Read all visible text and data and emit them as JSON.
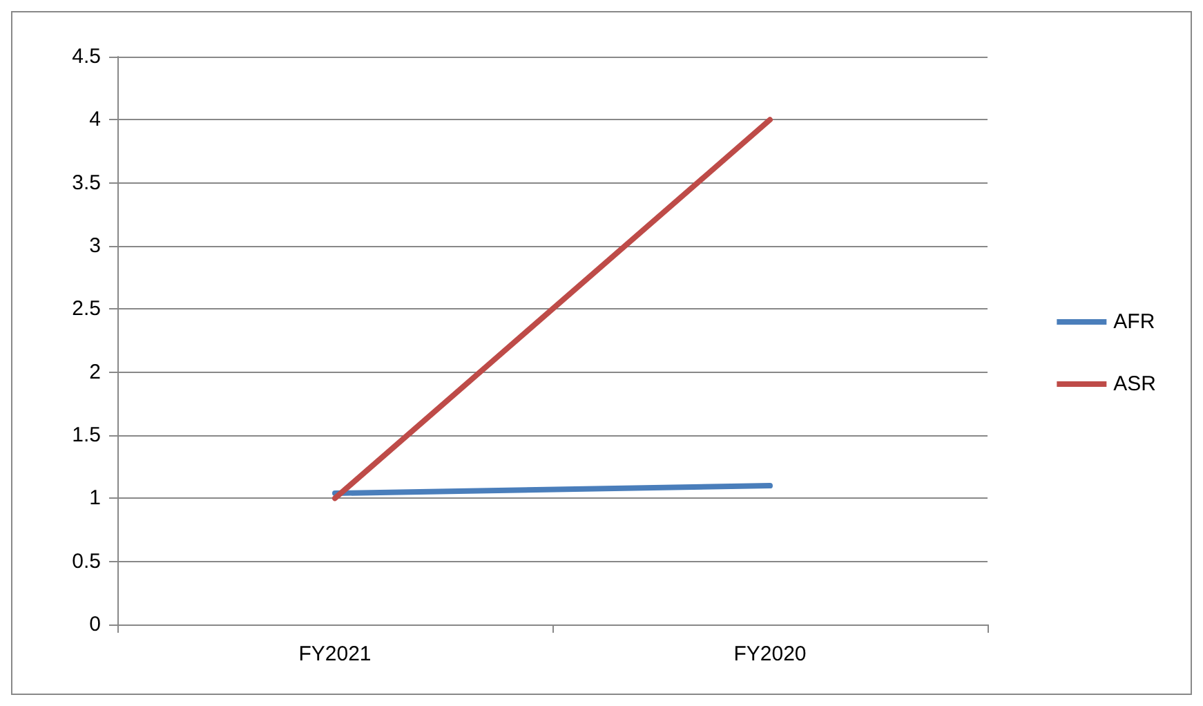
{
  "chart_data": {
    "type": "line",
    "categories": [
      "FY2021",
      "FY2020"
    ],
    "series": [
      {
        "name": "AFR",
        "color": "#4a7ebb",
        "values": [
          1.04,
          1.1
        ]
      },
      {
        "name": "ASR",
        "color": "#be4b48",
        "values": [
          1,
          4
        ]
      }
    ],
    "ylim": [
      0,
      4.5
    ],
    "yticks": [
      0,
      0.5,
      1,
      1.5,
      2,
      2.5,
      3,
      3.5,
      4,
      4.5
    ],
    "grid": "y",
    "legend": "right",
    "marker": "none",
    "line_style": "solid"
  }
}
